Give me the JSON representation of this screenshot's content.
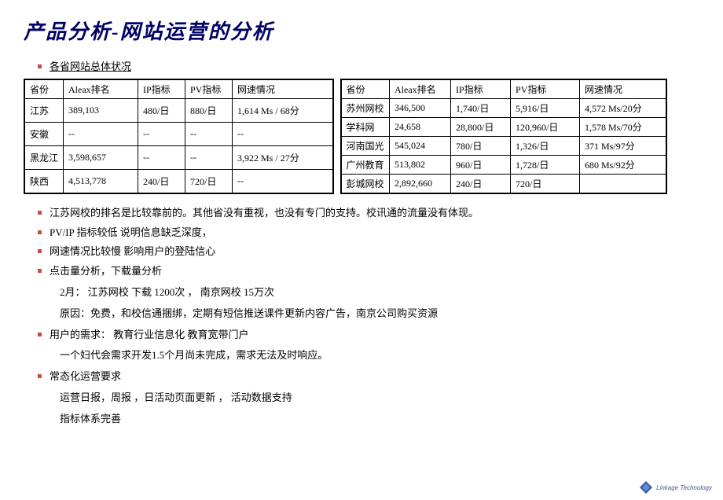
{
  "title": "产品分析-网站运营的分析",
  "subtitle": "各省网站总体状况",
  "tables": {
    "left": {
      "headers": [
        "省份",
        "Aleax排名",
        "IP指标",
        "PV指标",
        "网速情况"
      ],
      "rows": [
        [
          "江苏",
          "389,103",
          "480/日",
          "880/日",
          "1,614 Ms / 68分"
        ],
        [
          "安徽",
          "--",
          "--",
          "--",
          "--"
        ],
        [
          "黑龙江",
          "3,598,657",
          "--",
          "--",
          "3,922 Ms / 27分"
        ],
        [
          "陕西",
          "4,513,778",
          "240/日",
          "720/日",
          "--"
        ]
      ]
    },
    "right": {
      "headers": [
        "省份",
        "Aleax排名",
        "IP指标",
        "PV指标",
        "网速情况"
      ],
      "rows": [
        [
          "苏州网校",
          "346,500",
          "1,740/日",
          "5,916/日",
          "4,572 Ms/20分"
        ],
        [
          "学科网",
          "24,658",
          "28,800/日",
          "120,960/日",
          "1,578 Ms/70分"
        ],
        [
          "河南国光",
          "545,024",
          "780/日",
          "1,326/日",
          "371 Ms/97分"
        ],
        [
          "广州教育",
          "513,802",
          "960/日",
          "1,728/日",
          "680 Ms/92分"
        ],
        [
          "彭城网校",
          "2,892,660",
          "240/日",
          "720/日",
          ""
        ]
      ]
    }
  },
  "notes": [
    {
      "text": "江苏网校的排名是比较靠前的。其他省没有重视，也没有专门的支持。校讯通的流量没有体现。",
      "sub": []
    },
    {
      "text": "PV/IP 指标较低 说明信息缺乏深度，",
      "sub": []
    },
    {
      "text": "网速情况比较慢 影响用户的登陆信心",
      "sub": []
    },
    {
      "text": "点击量分析，下载量分析",
      "sub": [
        "2月： 江苏网校 下载 1200次  ， 南京网校 15万次",
        "原因：免费，和校信通捆绑，定期有短信推送课件更新内容广告，南京公司购买资源"
      ]
    },
    {
      "text": "用户的需求： 教育行业信息化 教育宽带门户",
      "sub": [
        "一个妇代会需求开发1.5个月尚未完成，需求无法及时响应。"
      ]
    },
    {
      "text": "常态化运营要求",
      "sub": [
        "运营日报，周报 ，日活动页面更新 ， 活动数据支持",
        "指标体系完善"
      ]
    }
  ],
  "logo_text": "Linkage Technology",
  "colors": {
    "title": "#000066",
    "bullet": "#c05046",
    "border": "#000000",
    "background": "#ffffff",
    "logo_blue": "#3a5aa8"
  }
}
